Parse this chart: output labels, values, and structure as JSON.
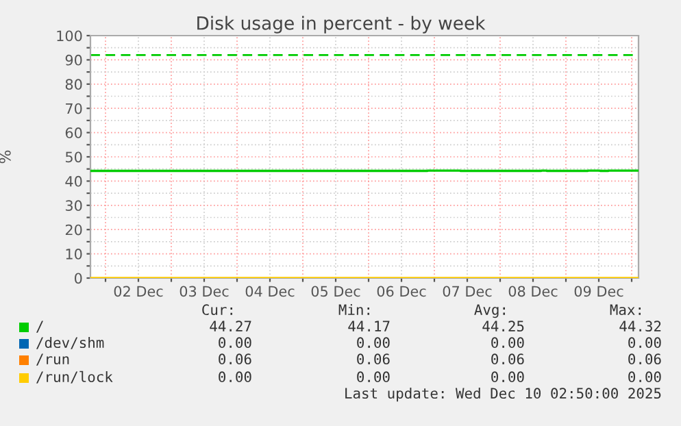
{
  "chart_data": {
    "type": "step",
    "title": "Disk usage in percent - by week",
    "ylabel": "%",
    "x": [
      "2025-12-01T18:30",
      "2025-12-06T21:30",
      "2025-12-07T09:30",
      "2025-12-08T15:00",
      "2025-12-08T17:00",
      "2025-12-09T08:00",
      "2025-12-09T12:30",
      "2025-12-09T15:30",
      "2025-12-10T02:00",
      "2025-12-10T02:30"
    ],
    "series": [
      {
        "name": "/",
        "color": "#00cc00",
        "values": [
          44.2,
          44.3,
          44.2,
          44.3,
          44.2,
          44.3,
          44.2,
          44.3,
          44.3,
          44.3
        ]
      },
      {
        "name": "/dev/shm",
        "color": "#0066b3",
        "values": [
          null,
          null,
          null,
          null,
          null,
          null,
          null,
          null,
          null,
          null
        ]
      },
      {
        "name": "/run",
        "color": "#ff8000",
        "values": [
          null,
          null,
          null,
          null,
          null,
          null,
          null,
          null,
          null,
          null
        ]
      },
      {
        "name": "/run/lock",
        "color": "#ffcc00",
        "values": [
          0,
          0,
          0,
          0,
          0,
          0,
          0,
          0,
          0,
          0
        ]
      }
    ],
    "xlim": [
      "2025-12-01T18:30",
      "2025-12-10T02:30"
    ],
    "xticks": [
      {
        "value": "2025-12-02T00:00",
        "label": null
      },
      {
        "value": "2025-12-02T12:00",
        "label": "02 Dec"
      },
      {
        "value": "2025-12-03T00:00",
        "label": null
      },
      {
        "value": "2025-12-03T12:00",
        "label": "03 Dec"
      },
      {
        "value": "2025-12-04T00:00",
        "label": null
      },
      {
        "value": "2025-12-04T12:00",
        "label": "04 Dec"
      },
      {
        "value": "2025-12-05T00:00",
        "label": null
      },
      {
        "value": "2025-12-05T12:00",
        "label": "05 Dec"
      },
      {
        "value": "2025-12-06T00:00",
        "label": null
      },
      {
        "value": "2025-12-06T12:00",
        "label": "06 Dec"
      },
      {
        "value": "2025-12-07T00:00",
        "label": null
      },
      {
        "value": "2025-12-07T12:00",
        "label": "07 Dec"
      },
      {
        "value": "2025-12-08T00:00",
        "label": null
      },
      {
        "value": "2025-12-08T12:00",
        "label": "08 Dec"
      },
      {
        "value": "2025-12-09T00:00",
        "label": null
      },
      {
        "value": "2025-12-09T12:00",
        "label": "09 Dec"
      },
      {
        "value": "2025-12-10T00:00",
        "label": null
      }
    ],
    "ylim": [
      0,
      100
    ],
    "yticks": [
      0,
      {
        "value": 5,
        "label": null
      },
      10,
      {
        "value": 15,
        "label": null
      },
      20,
      {
        "value": 25,
        "label": null
      },
      30,
      {
        "value": 35,
        "label": null
      },
      40,
      {
        "value": 45,
        "label": null
      },
      50,
      {
        "value": 55,
        "label": null
      },
      60,
      {
        "value": 65,
        "label": null
      },
      70,
      {
        "value": 75,
        "label": null
      },
      80,
      {
        "value": 85,
        "label": null
      },
      90,
      {
        "value": 95,
        "label": null
      },
      100
    ],
    "grid": true,
    "legend": "bottom",
    "ref_lines": [
      {
        "axis": "y",
        "value": 92,
        "label": null,
        "color": "#00cc00",
        "line_style": "dashed"
      }
    ],
    "annotations": [
      "Cur:",
      "Min:",
      "Avg:",
      "Max:",
      "44.27",
      "44.17",
      "44.25",
      "44.32",
      "0.00",
      "0.00",
      "0.00",
      "0.00",
      "0.06",
      "0.06",
      "0.06",
      "0.06",
      "0.00",
      "0.00",
      "0.00",
      "0.00",
      "Last update: Wed Dec 10 02:50:00 2025"
    ]
  }
}
